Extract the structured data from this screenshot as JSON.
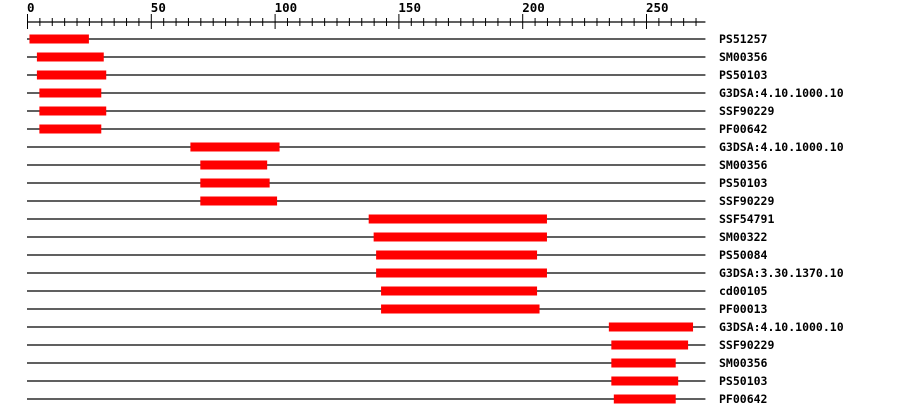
{
  "axis": {
    "min": 0,
    "max": 274,
    "major_ticks": [
      0,
      50,
      100,
      150,
      200,
      250
    ],
    "major_tick_labels": [
      "0",
      "50",
      "100",
      "150",
      "200",
      "250"
    ],
    "minor_tick_step": 5
  },
  "colors": {
    "feature": "#ff0000",
    "line": "#000000"
  },
  "features": [
    {
      "label": "PS51257",
      "start": 1,
      "end": 25
    },
    {
      "label": "SM00356",
      "start": 4,
      "end": 31
    },
    {
      "label": "PS50103",
      "start": 4,
      "end": 32
    },
    {
      "label": "G3DSA:4.10.1000.10",
      "start": 5,
      "end": 30
    },
    {
      "label": "SSF90229",
      "start": 5,
      "end": 32
    },
    {
      "label": "PF00642",
      "start": 5,
      "end": 30
    },
    {
      "label": "G3DSA:4.10.1000.10",
      "start": 66,
      "end": 102
    },
    {
      "label": "SM00356",
      "start": 70,
      "end": 97
    },
    {
      "label": "PS50103",
      "start": 70,
      "end": 98
    },
    {
      "label": "SSF90229",
      "start": 70,
      "end": 101
    },
    {
      "label": "SSF54791",
      "start": 138,
      "end": 210
    },
    {
      "label": "SM00322",
      "start": 140,
      "end": 210
    },
    {
      "label": "PS50084",
      "start": 141,
      "end": 206
    },
    {
      "label": "G3DSA:3.30.1370.10",
      "start": 141,
      "end": 210
    },
    {
      "label": "cd00105",
      "start": 143,
      "end": 206
    },
    {
      "label": "PF00013",
      "start": 143,
      "end": 207
    },
    {
      "label": "G3DSA:4.10.1000.10",
      "start": 235,
      "end": 269
    },
    {
      "label": "SSF90229",
      "start": 236,
      "end": 267
    },
    {
      "label": "SM00356",
      "start": 236,
      "end": 262
    },
    {
      "label": "PS50103",
      "start": 236,
      "end": 263
    },
    {
      "label": "PF00642",
      "start": 237,
      "end": 262
    }
  ]
}
